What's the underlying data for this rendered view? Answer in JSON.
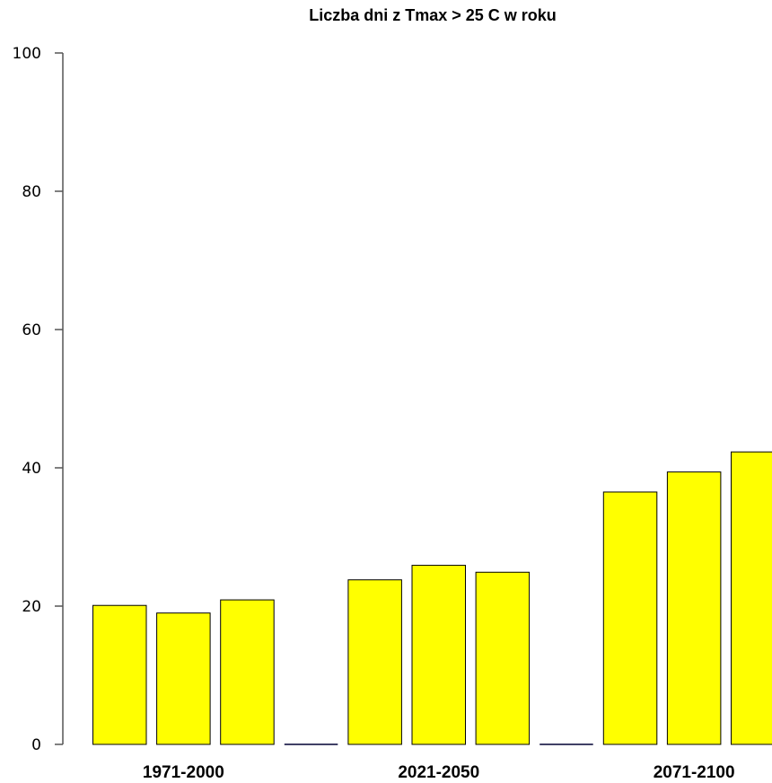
{
  "chart_data": {
    "type": "bar",
    "title": "Liczba dni z Tmax > 25 C w roku",
    "xlabel": "",
    "ylabel": "",
    "ylim": [
      0,
      100
    ],
    "yticks": [
      0,
      20,
      40,
      60,
      80,
      100
    ],
    "categories": [
      "1971-2000",
      "2021-2050",
      "2071-2100"
    ],
    "series": [
      {
        "values": [
          20.1,
          23.8,
          36.5
        ]
      },
      {
        "values": [
          19.0,
          25.9,
          39.4
        ]
      },
      {
        "values": [
          20.9,
          24.9,
          42.3
        ]
      }
    ],
    "bar_color": "#ffff00",
    "grid": false,
    "legend": "none"
  }
}
